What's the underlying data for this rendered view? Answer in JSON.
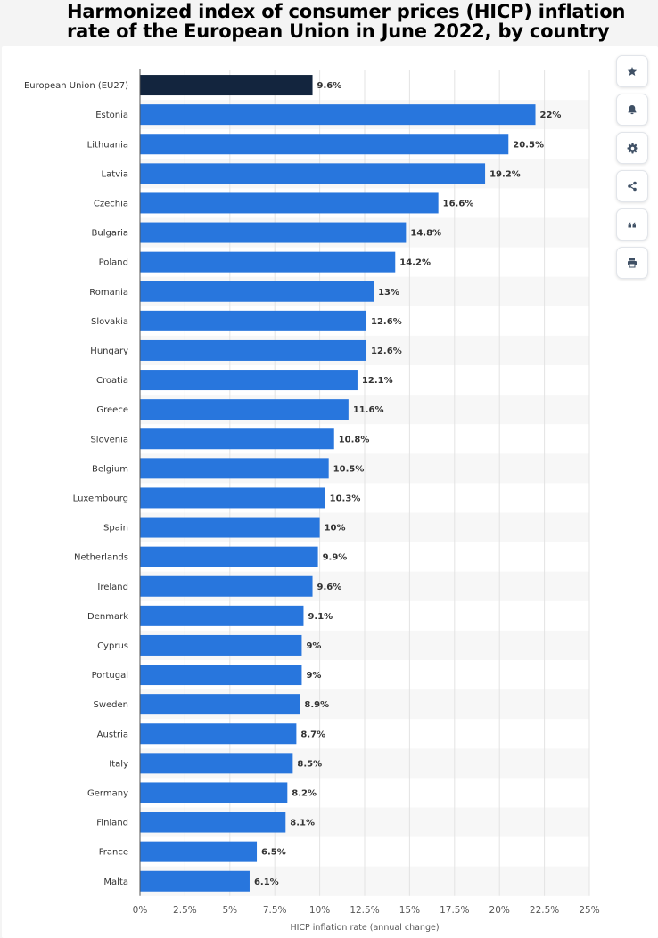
{
  "title": "Harmonized index of consumer prices (HICP) inflation rate of the European Union in June 2022, by country",
  "colors": {
    "highlight_bar": "#13253e",
    "bar": "#2876dd",
    "stripe": "#f7f7f7",
    "grid": "#e3e3e3",
    "axis": "#555555",
    "icon": "#3f5065"
  },
  "toolbar": {
    "buttons": [
      {
        "icon": "star-icon",
        "name": "favorite-button"
      },
      {
        "icon": "bell-icon",
        "name": "notification-button"
      },
      {
        "icon": "gear-icon",
        "name": "settings-button"
      },
      {
        "icon": "share-icon",
        "name": "share-button"
      },
      {
        "icon": "quote-icon",
        "name": "cite-button"
      },
      {
        "icon": "print-icon",
        "name": "print-button"
      }
    ]
  },
  "chart_data": {
    "type": "bar",
    "orientation": "horizontal",
    "title": "Harmonized index of consumer prices (HICP) inflation rate of the European Union in June 2022, by country",
    "xlabel": "HICP inflation rate (annual change)",
    "ylabel": "",
    "xlim": [
      0,
      25
    ],
    "x_ticks": [
      "0%",
      "2.5%",
      "5%",
      "7.5%",
      "10%",
      "12.5%",
      "15%",
      "17.5%",
      "20%",
      "22.5%",
      "25%"
    ],
    "x_tick_values": [
      0,
      2.5,
      5,
      7.5,
      10,
      12.5,
      15,
      17.5,
      20,
      22.5,
      25
    ],
    "grid": true,
    "categories": [
      "European Union (EU27)",
      "Estonia",
      "Lithuania",
      "Latvia",
      "Czechia",
      "Bulgaria",
      "Poland",
      "Romania",
      "Slovakia",
      "Hungary",
      "Croatia",
      "Greece",
      "Slovenia",
      "Belgium",
      "Luxembourg",
      "Spain",
      "Netherlands",
      "Ireland",
      "Denmark",
      "Cyprus",
      "Portugal",
      "Sweden",
      "Austria",
      "Italy",
      "Germany",
      "Finland",
      "France",
      "Malta"
    ],
    "values": [
      9.6,
      22,
      20.5,
      19.2,
      16.6,
      14.8,
      14.2,
      13,
      12.6,
      12.6,
      12.1,
      11.6,
      10.8,
      10.5,
      10.3,
      10,
      9.9,
      9.6,
      9.1,
      9,
      9,
      8.9,
      8.7,
      8.5,
      8.2,
      8.1,
      6.5,
      6.1
    ],
    "value_labels": [
      "9.6%",
      "22%",
      "20.5%",
      "19.2%",
      "16.6%",
      "14.8%",
      "14.2%",
      "13%",
      "12.6%",
      "12.6%",
      "12.1%",
      "11.6%",
      "10.8%",
      "10.5%",
      "10.3%",
      "10%",
      "9.9%",
      "9.6%",
      "9.1%",
      "9%",
      "9%",
      "8.9%",
      "8.7%",
      "8.5%",
      "8.2%",
      "8.1%",
      "6.5%",
      "6.1%"
    ],
    "highlight_index": 0
  }
}
